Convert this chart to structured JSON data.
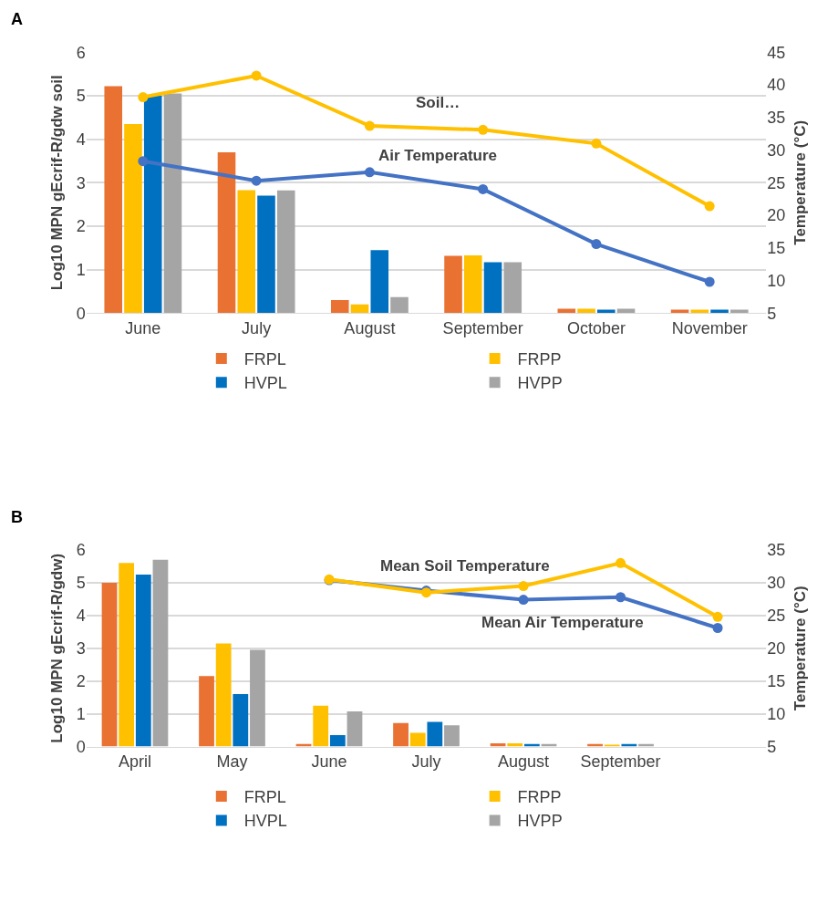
{
  "chart_data": [
    {
      "type": "bar",
      "title": "A",
      "ylabel": "Log10 MPN gEcrif-R/gdw soil",
      "y2label": "Temperature (°C)",
      "categories": [
        "June",
        "July",
        "August",
        "September",
        "October",
        "November"
      ],
      "ylim": [
        0,
        6
      ],
      "yticks": [
        0,
        1,
        2,
        3,
        4,
        5,
        6
      ],
      "y2lim": [
        5,
        45
      ],
      "y2ticks": [
        5,
        10,
        15,
        20,
        25,
        30,
        35,
        40,
        45
      ],
      "grid": "y",
      "legend": "bottom",
      "marker": "circle",
      "series": [
        {
          "name": "FRPL",
          "color": "#e97132",
          "values": [
            5.22,
            3.7,
            0.3,
            1.32,
            0.1,
            0.08
          ]
        },
        {
          "name": "FRPP",
          "color": "#ffc000",
          "values": [
            4.35,
            2.83,
            0.2,
            1.33,
            0.1,
            0.08
          ]
        },
        {
          "name": "HVPL",
          "color": "#0070c0",
          "values": [
            5.0,
            2.7,
            1.45,
            1.17,
            0.08,
            0.08
          ]
        },
        {
          "name": "HVPP",
          "color": "#a5a5a5",
          "values": [
            5.05,
            2.82,
            0.37,
            1.17,
            0.1,
            0.08
          ]
        },
        {
          "name": "Soil…",
          "type": "line",
          "axis": "y2",
          "color": "#ffc000",
          "values": [
            38.1,
            41.4,
            33.7,
            33.1,
            31.0,
            21.4
          ]
        },
        {
          "name": "Air Temperature",
          "type": "line",
          "axis": "y2",
          "color": "#4472c4",
          "values": [
            28.3,
            25.3,
            26.6,
            24.0,
            15.6,
            9.8
          ]
        }
      ]
    },
    {
      "type": "bar",
      "title": "B",
      "ylabel": "Log10 MPN gEcrif-R/gdw)",
      "y2label": "Temperature (°C)",
      "categories": [
        "April",
        "May",
        "June",
        "July",
        "August",
        "September",
        null
      ],
      "ylim": [
        0,
        6
      ],
      "yticks": [
        0,
        1,
        2,
        3,
        4,
        5,
        6
      ],
      "y2lim": [
        5,
        35
      ],
      "y2ticks": [
        5,
        10,
        15,
        20,
        25,
        30,
        35
      ],
      "grid": "y",
      "legend": "bottom",
      "marker": "circle",
      "series": [
        {
          "name": "FRPL",
          "color": "#e97132",
          "values": [
            5.0,
            2.15,
            0.08,
            0.72,
            0.1,
            0.08,
            null
          ]
        },
        {
          "name": "FRPP",
          "color": "#ffc000",
          "values": [
            5.6,
            3.15,
            1.25,
            0.42,
            0.1,
            0.06,
            null
          ]
        },
        {
          "name": "HVPL",
          "color": "#0070c0",
          "values": [
            5.25,
            1.6,
            0.35,
            0.75,
            0.08,
            0.08,
            null
          ]
        },
        {
          "name": "HVPP",
          "color": "#a5a5a5",
          "values": [
            5.7,
            2.95,
            1.07,
            0.65,
            0.08,
            0.08,
            null
          ]
        },
        {
          "name": "Mean Soil Temperature",
          "type": "line",
          "axis": "y2",
          "color": "#ffc000",
          "values": [
            null,
            null,
            30.5,
            28.5,
            29.5,
            33.0,
            24.8
          ]
        },
        {
          "name": "Mean Air Temperature",
          "type": "line",
          "axis": "y2",
          "color": "#4472c4",
          "values": [
            null,
            null,
            30.4,
            28.8,
            27.4,
            27.8,
            23.1
          ]
        }
      ]
    }
  ]
}
